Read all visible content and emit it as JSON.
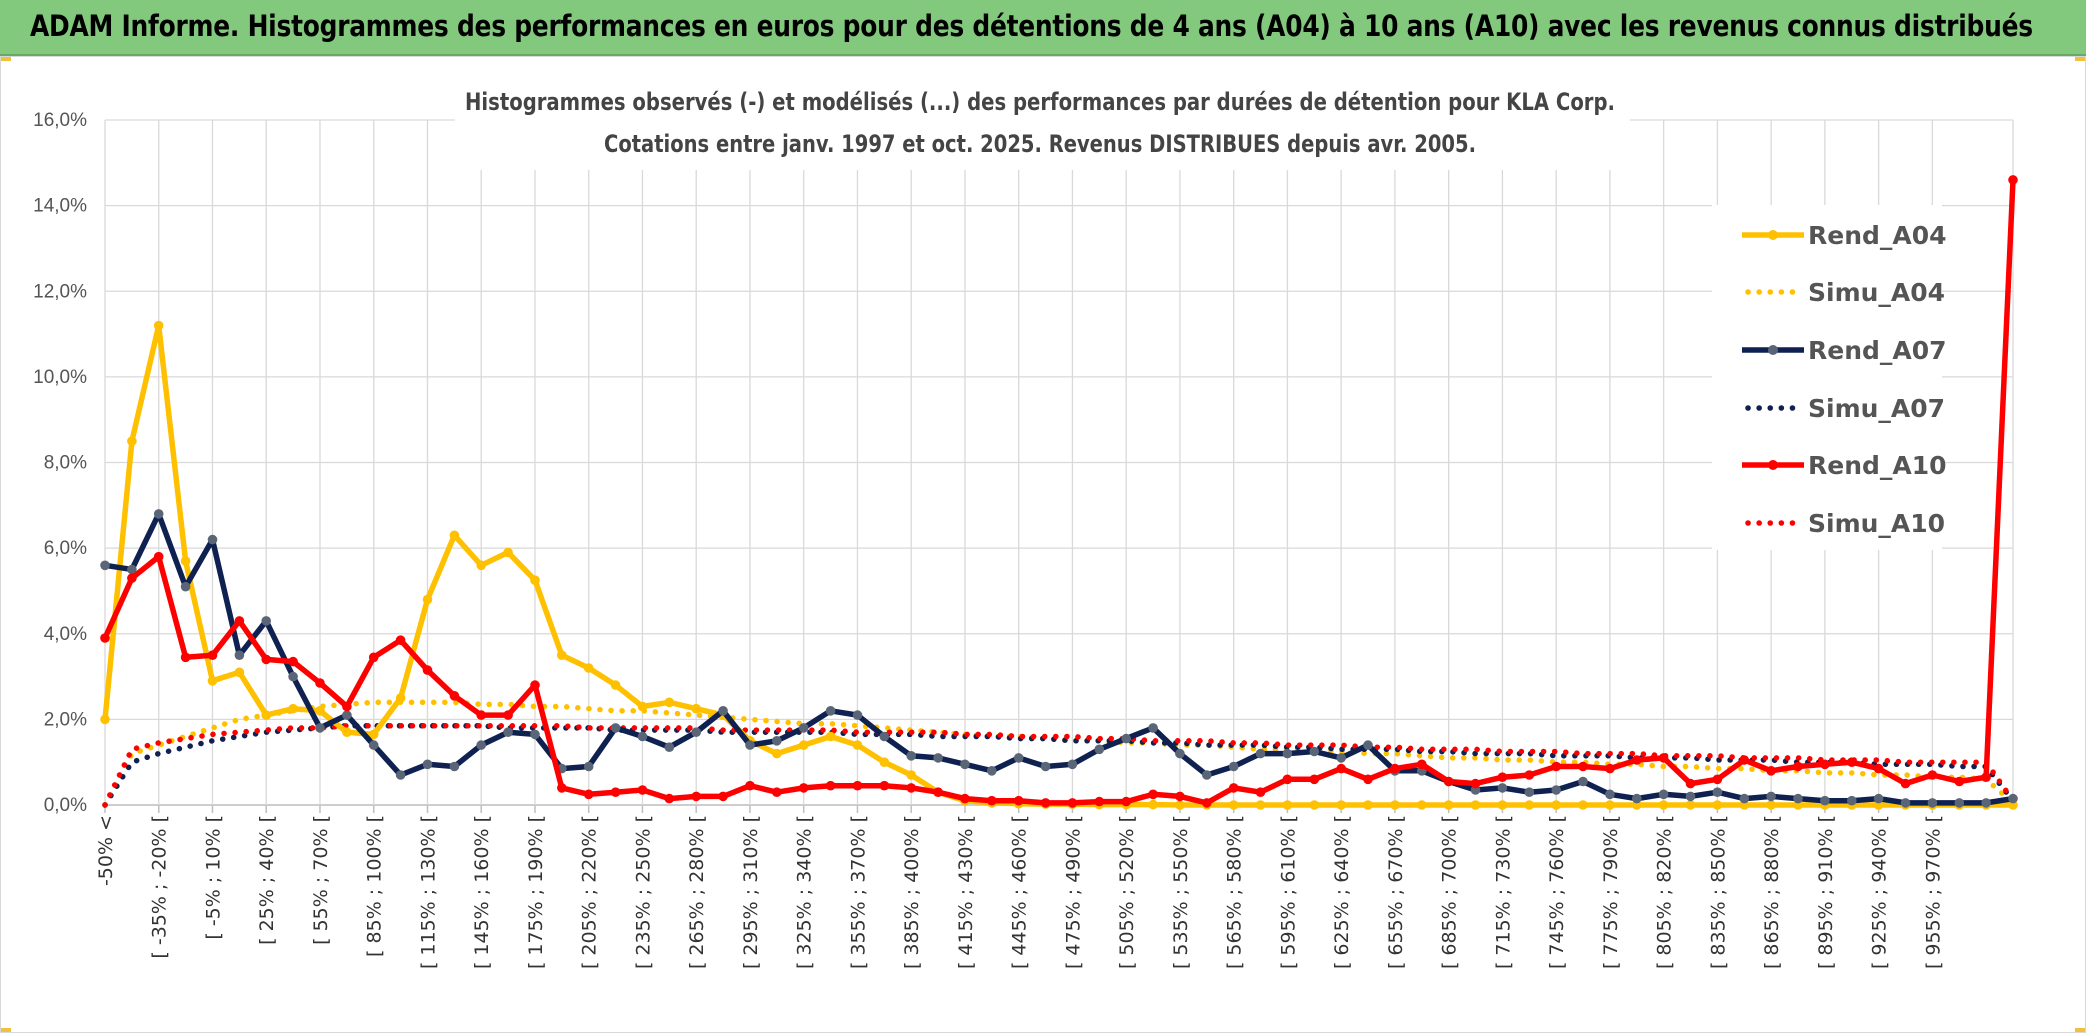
{
  "header": {
    "title": "ADAM Informe. Histogrammes des performances en euros pour des détentions de 4 ans (A04) à 10 ans (A10) avec les revenus connus distribués"
  },
  "chart_data": {
    "type": "line",
    "title": "Histogrammes observés (-) et modélisés (...) des performances par durées de détention pour KLA Corp.",
    "subtitle": "Cotations entre janv. 1997 et oct. 2025. Revenus DISTRIBUES depuis avr. 2005.",
    "xlabel": "",
    "ylabel": "",
    "ylim": [
      0,
      16
    ],
    "y_ticks": [
      "0,0%",
      "2,0%",
      "4,0%",
      "6,0%",
      "8,0%",
      "10,0%",
      "12,0%",
      "14,0%",
      "16,0%"
    ],
    "x_tick_labels": [
      "-50% <",
      "[ -35% ; -20% [",
      "[ -5% ; 10% [",
      "[ 25% ; 40% [",
      "[ 55% ; 70% [",
      "[ 85% ; 100% [",
      "[ 115% ; 130% [",
      "[ 145% ; 160% [",
      "[ 175% ; 190% [",
      "[ 205% ; 220% [",
      "[ 235% ; 250% [",
      "[ 265% ; 280% [",
      "[ 295% ; 310% [",
      "[ 325% ; 340% [",
      "[ 355% ; 370% [",
      "[ 385% ; 400% [",
      "[ 415% ; 430% [",
      "[ 445% ; 460% [",
      "[ 475% ; 490% [",
      "[ 505% ; 520% [",
      "[ 535% ; 550% [",
      "[ 565% ; 580% [",
      "[ 595% ; 610% [",
      "[ 625% ; 640% [",
      "[ 655% ; 670% [",
      "[ 685% ; 700% [",
      "[ 715% ; 730% [",
      "[ 745% ; 760% [",
      "[ 775% ; 790% [",
      "[ 805% ; 820% [",
      "[ 835% ; 850% [",
      "[ 865% ; 880% [",
      "[ 895% ; 910% [",
      "[ 925% ; 940% [",
      "[ 955% ; 970% ["
    ],
    "grid": true,
    "legend_position": "right",
    "series": [
      {
        "name": "Rend_A04",
        "style": "solid",
        "color": "#FFC000",
        "values": [
          2.0,
          8.5,
          11.2,
          5.7,
          2.9,
          3.1,
          2.1,
          2.25,
          2.2,
          1.7,
          1.65,
          2.5,
          4.8,
          6.3,
          5.6,
          5.9,
          5.25,
          3.5,
          3.2,
          2.8,
          2.3,
          2.4,
          2.25,
          2.1,
          1.5,
          1.2,
          1.4,
          1.6,
          1.4,
          1.0,
          0.7,
          0.3,
          0.1,
          0.05,
          0.03,
          0.02,
          0.02,
          0.01,
          0.01,
          0.01,
          0.0,
          0.0,
          0.0,
          0.0,
          0.0,
          0.0,
          0.0,
          0.0,
          0.0,
          0.0,
          0.0,
          0.0,
          0.0,
          0.0,
          0.0,
          0.0,
          0.0,
          0.0,
          0.0,
          0.0,
          0.0,
          0.0,
          0.0,
          0.0,
          0.0,
          0.0,
          0.0,
          0.0,
          0.0,
          0.0,
          0.0,
          0.0
        ]
      },
      {
        "name": "Simu_A04",
        "style": "dotted",
        "color": "#FFC000",
        "values": [
          0.0,
          1.2,
          1.4,
          1.6,
          1.8,
          2.0,
          2.1,
          2.2,
          2.3,
          2.35,
          2.4,
          2.4,
          2.4,
          2.4,
          2.35,
          2.35,
          2.3,
          2.3,
          2.25,
          2.2,
          2.2,
          2.15,
          2.1,
          2.05,
          2.0,
          1.95,
          1.9,
          1.9,
          1.85,
          1.8,
          1.75,
          1.7,
          1.65,
          1.6,
          1.6,
          1.55,
          1.5,
          1.5,
          1.45,
          1.45,
          1.4,
          1.4,
          1.35,
          1.3,
          1.3,
          1.25,
          1.25,
          1.2,
          1.2,
          1.15,
          1.1,
          1.1,
          1.05,
          1.05,
          1.0,
          1.0,
          0.95,
          0.95,
          0.9,
          0.9,
          0.85,
          0.85,
          0.8,
          0.8,
          0.75,
          0.75,
          0.7,
          0.7,
          0.65,
          0.65,
          0.6,
          0.05
        ]
      },
      {
        "name": "Rend_A07",
        "style": "solid",
        "color": "#0E2150",
        "values": [
          5.6,
          5.5,
          6.8,
          5.1,
          6.2,
          3.5,
          4.3,
          3.0,
          1.8,
          2.1,
          1.4,
          0.7,
          0.95,
          0.9,
          1.4,
          1.7,
          1.65,
          0.85,
          0.9,
          1.8,
          1.6,
          1.35,
          1.7,
          2.2,
          1.4,
          1.5,
          1.8,
          2.2,
          2.1,
          1.6,
          1.15,
          1.1,
          0.95,
          0.8,
          1.1,
          0.9,
          0.95,
          1.3,
          1.55,
          1.8,
          1.2,
          0.7,
          0.9,
          1.2,
          1.2,
          1.25,
          1.1,
          1.4,
          0.8,
          0.8,
          0.55,
          0.35,
          0.4,
          0.3,
          0.35,
          0.55,
          0.25,
          0.15,
          0.25,
          0.2,
          0.3,
          0.15,
          0.2,
          0.15,
          0.1,
          0.1,
          0.15,
          0.05,
          0.05,
          0.05,
          0.05,
          0.15
        ]
      },
      {
        "name": "Simu_A07",
        "style": "dotted",
        "color": "#0E2150",
        "values": [
          0.0,
          1.0,
          1.2,
          1.35,
          1.5,
          1.6,
          1.7,
          1.75,
          1.8,
          1.85,
          1.85,
          1.85,
          1.85,
          1.85,
          1.85,
          1.8,
          1.8,
          1.8,
          1.8,
          1.75,
          1.75,
          1.75,
          1.75,
          1.7,
          1.7,
          1.7,
          1.7,
          1.7,
          1.65,
          1.65,
          1.65,
          1.6,
          1.6,
          1.6,
          1.55,
          1.55,
          1.5,
          1.5,
          1.5,
          1.45,
          1.45,
          1.4,
          1.4,
          1.4,
          1.35,
          1.35,
          1.3,
          1.3,
          1.3,
          1.25,
          1.25,
          1.2,
          1.2,
          1.2,
          1.15,
          1.15,
          1.15,
          1.1,
          1.1,
          1.1,
          1.05,
          1.05,
          1.05,
          1.0,
          1.0,
          1.0,
          0.95,
          0.95,
          0.95,
          0.9,
          0.9,
          0.1
        ]
      },
      {
        "name": "Rend_A10",
        "style": "solid",
        "color": "#FF0000",
        "values": [
          3.9,
          5.3,
          5.8,
          3.45,
          3.5,
          4.3,
          3.4,
          3.35,
          2.85,
          2.3,
          3.45,
          3.85,
          3.15,
          2.55,
          2.1,
          2.1,
          2.8,
          0.4,
          0.25,
          0.3,
          0.35,
          0.15,
          0.2,
          0.2,
          0.45,
          0.3,
          0.4,
          0.45,
          0.45,
          0.45,
          0.4,
          0.3,
          0.15,
          0.1,
          0.1,
          0.05,
          0.05,
          0.08,
          0.08,
          0.25,
          0.2,
          0.05,
          0.4,
          0.3,
          0.6,
          0.6,
          0.85,
          0.6,
          0.85,
          0.95,
          0.55,
          0.5,
          0.65,
          0.7,
          0.9,
          0.9,
          0.85,
          1.05,
          1.1,
          0.5,
          0.6,
          1.05,
          0.8,
          0.9,
          0.95,
          1.0,
          0.85,
          0.5,
          0.7,
          0.55,
          0.65,
          14.6
        ]
      },
      {
        "name": "Simu_A10",
        "style": "dotted",
        "color": "#FF0000",
        "values": [
          0.0,
          1.3,
          1.45,
          1.55,
          1.65,
          1.7,
          1.75,
          1.8,
          1.8,
          1.85,
          1.85,
          1.85,
          1.85,
          1.85,
          1.85,
          1.85,
          1.85,
          1.85,
          1.8,
          1.8,
          1.8,
          1.8,
          1.8,
          1.75,
          1.75,
          1.75,
          1.75,
          1.75,
          1.7,
          1.7,
          1.7,
          1.7,
          1.65,
          1.65,
          1.6,
          1.6,
          1.6,
          1.55,
          1.55,
          1.5,
          1.5,
          1.5,
          1.45,
          1.45,
          1.4,
          1.4,
          1.4,
          1.35,
          1.35,
          1.3,
          1.3,
          1.3,
          1.25,
          1.25,
          1.25,
          1.2,
          1.2,
          1.2,
          1.15,
          1.15,
          1.15,
          1.1,
          1.1,
          1.1,
          1.05,
          1.05,
          1.05,
          1.0,
          1.0,
          1.0,
          1.0,
          0.1
        ]
      }
    ]
  }
}
